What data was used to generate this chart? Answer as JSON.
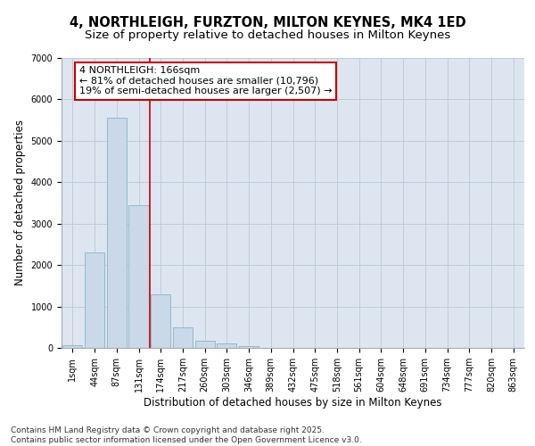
{
  "title1": "4, NORTHLEIGH, FURZTON, MILTON KEYNES, MK4 1ED",
  "title2": "Size of property relative to detached houses in Milton Keynes",
  "xlabel": "Distribution of detached houses by size in Milton Keynes",
  "ylabel": "Number of detached properties",
  "categories": [
    "1sqm",
    "44sqm",
    "87sqm",
    "131sqm",
    "174sqm",
    "217sqm",
    "260sqm",
    "303sqm",
    "346sqm",
    "389sqm",
    "432sqm",
    "475sqm",
    "518sqm",
    "561sqm",
    "604sqm",
    "648sqm",
    "691sqm",
    "734sqm",
    "777sqm",
    "820sqm",
    "863sqm"
  ],
  "values": [
    55,
    2300,
    5550,
    3450,
    1300,
    500,
    175,
    100,
    50,
    10,
    4,
    2,
    1,
    0,
    0,
    0,
    0,
    0,
    0,
    0,
    0
  ],
  "bar_color": "#c9d9e8",
  "bar_edge_color": "#7aaabf",
  "grid_color": "#b8c8d8",
  "background_color": "#dde6f0",
  "vline_color": "#cc0000",
  "annotation_text": "4 NORTHLEIGH: 166sqm\n← 81% of detached houses are smaller (10,796)\n19% of semi-detached houses are larger (2,507) →",
  "annotation_box_color": "#cc0000",
  "ylim": [
    0,
    7000
  ],
  "yticks": [
    0,
    1000,
    2000,
    3000,
    4000,
    5000,
    6000,
    7000
  ],
  "footnote": "Contains HM Land Registry data © Crown copyright and database right 2025.\nContains public sector information licensed under the Open Government Licence v3.0.",
  "title_fontsize": 10.5,
  "subtitle_fontsize": 9.5,
  "axis_label_fontsize": 8.5,
  "tick_fontsize": 7,
  "annotation_fontsize": 8,
  "footnote_fontsize": 6.5
}
